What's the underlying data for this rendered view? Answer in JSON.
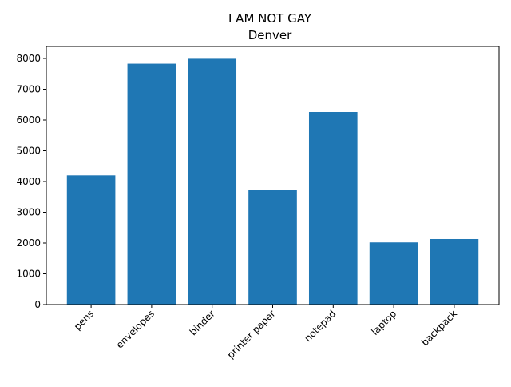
{
  "chart_data": {
    "type": "bar",
    "title": "I AM NOT GAY",
    "subtitle": "Denver",
    "xlabel": "",
    "ylabel": "",
    "categories": [
      "pens",
      "envelopes",
      "binder",
      "printer paper",
      "notepad",
      "laptop",
      "backpack"
    ],
    "values": [
      4200,
      7830,
      7990,
      3730,
      6260,
      2020,
      2130
    ],
    "ylim": [
      0,
      8390
    ],
    "yticks": [
      0,
      1000,
      2000,
      3000,
      4000,
      5000,
      6000,
      7000,
      8000
    ],
    "grid": false,
    "legend": "none",
    "bar_color": "#1f77b4",
    "xtick_rotation": 45
  }
}
